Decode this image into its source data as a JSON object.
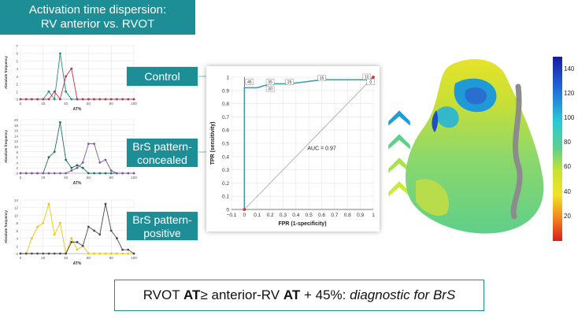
{
  "title": {
    "line1": "Activation time dispersion:",
    "line2": "RV anterior vs. RVOT"
  },
  "labels": {
    "control": "Control",
    "concealed_1": "BrS pattern-",
    "concealed_2": "concealed",
    "positive_1": "BrS pattern-",
    "positive_2": "positive"
  },
  "histograms": {
    "ylabel": "Absolute frequency",
    "xlabel": "AT%",
    "x_ticks": [
      "0",
      "20",
      "40",
      "60",
      "80",
      "100"
    ],
    "control": {
      "y_ticks": [
        "0",
        "1",
        "2",
        "3",
        "4",
        "5",
        "6",
        "7"
      ],
      "ymax": 7,
      "series": [
        {
          "color": "#1e8e80",
          "values": [
            0,
            0,
            0,
            0,
            0,
            1,
            0,
            6,
            1,
            0,
            0,
            0,
            0,
            0,
            0,
            0,
            0,
            0,
            0,
            0,
            0
          ]
        },
        {
          "color": "#c0304a",
          "values": [
            0,
            0,
            0,
            0,
            0,
            0,
            1,
            0,
            3,
            4,
            0,
            0,
            0,
            0,
            0,
            0,
            0,
            0,
            0,
            0,
            0
          ]
        }
      ]
    },
    "concealed": {
      "y_ticks": [
        "0",
        "2",
        "4",
        "6",
        "8",
        "10",
        "12",
        "14",
        "16",
        "18",
        "20"
      ],
      "ymax": 20,
      "series": [
        {
          "color": "#1e6e5a",
          "values": [
            0,
            0,
            0,
            0,
            0,
            6,
            8,
            19,
            5,
            2,
            3,
            2,
            0,
            0,
            0,
            0,
            0,
            0,
            0,
            0,
            0
          ]
        },
        {
          "color": "#7e5a9a",
          "values": [
            0,
            0,
            0,
            0,
            0,
            0,
            0,
            0,
            0,
            1,
            2,
            4,
            11,
            11,
            4,
            5,
            1,
            0,
            0,
            0,
            0
          ]
        }
      ]
    },
    "positive": {
      "y_ticks": [
        "0",
        "2",
        "4",
        "6",
        "8",
        "10",
        "12",
        "14"
      ],
      "ymax": 14,
      "series": [
        {
          "color": "#f2c40f",
          "values": [
            0,
            0,
            4,
            7,
            8,
            13,
            5,
            8,
            0,
            4,
            1,
            2,
            0,
            0,
            0,
            0,
            0,
            0,
            0,
            0,
            0
          ]
        },
        {
          "color": "#4a4a4a",
          "values": [
            0,
            0,
            0,
            0,
            0,
            0,
            0,
            0,
            0,
            3,
            3,
            2,
            7,
            6,
            5,
            13,
            6,
            4,
            1,
            1,
            0
          ]
        }
      ]
    }
  },
  "roc": {
    "xlabel": "FPR (1-specificity)",
    "ylabel": "TPR (sensitivity)",
    "auc_label": "AUC = 0.97",
    "x_ticks": [
      "−0.1",
      "0",
      "0.1",
      "0.2",
      "0.3",
      "0.4",
      "0.5",
      "0.6",
      "0.7",
      "0.8",
      "0.9",
      "1"
    ],
    "y_ticks": [
      "0",
      "0.1",
      "0.2",
      "0.3",
      "0.4",
      "0.5",
      "0.6",
      "0.7",
      "0.8",
      "0.9",
      "1"
    ],
    "curve_fpr": [
      0,
      0,
      0,
      0.1,
      0.2,
      0.35,
      0.6,
      0.97,
      1
    ],
    "curve_tpr": [
      0,
      0.9,
      0.92,
      0.92,
      0.95,
      0.95,
      0.98,
      0.98,
      1
    ],
    "point_labels": [
      {
        "text": "45",
        "fpr": 0.04,
        "tpr": 0.96
      },
      {
        "text": "35",
        "fpr": 0.2,
        "tpr": 0.96
      },
      {
        "text": "30",
        "fpr": 0.2,
        "tpr": 0.91
      },
      {
        "text": "25",
        "fpr": 0.35,
        "tpr": 0.96
      },
      {
        "text": "15",
        "fpr": 0.6,
        "tpr": 0.99
      },
      {
        "text": "10",
        "fpr": 0.95,
        "tpr": 1.0
      },
      {
        "text": "0",
        "fpr": 0.98,
        "tpr": 0.96
      }
    ],
    "line_color": "#3a9fa8"
  },
  "chevrons": {
    "colors": [
      "#1e9fd8",
      "#5fd08a",
      "#a8e34a",
      "#c8ec32"
    ]
  },
  "colorbar": {
    "ticks": [
      "140",
      "120",
      "100",
      "80",
      "60",
      "40",
      "20"
    ],
    "min": 0,
    "max": 150
  },
  "conclusion": {
    "part1": "RVOT ",
    "bold1": "AT",
    "part2": "≥ anterior-RV ",
    "bold2": "AT",
    "part3": " + 45%: ",
    "italic": "diagnostic for BrS"
  }
}
